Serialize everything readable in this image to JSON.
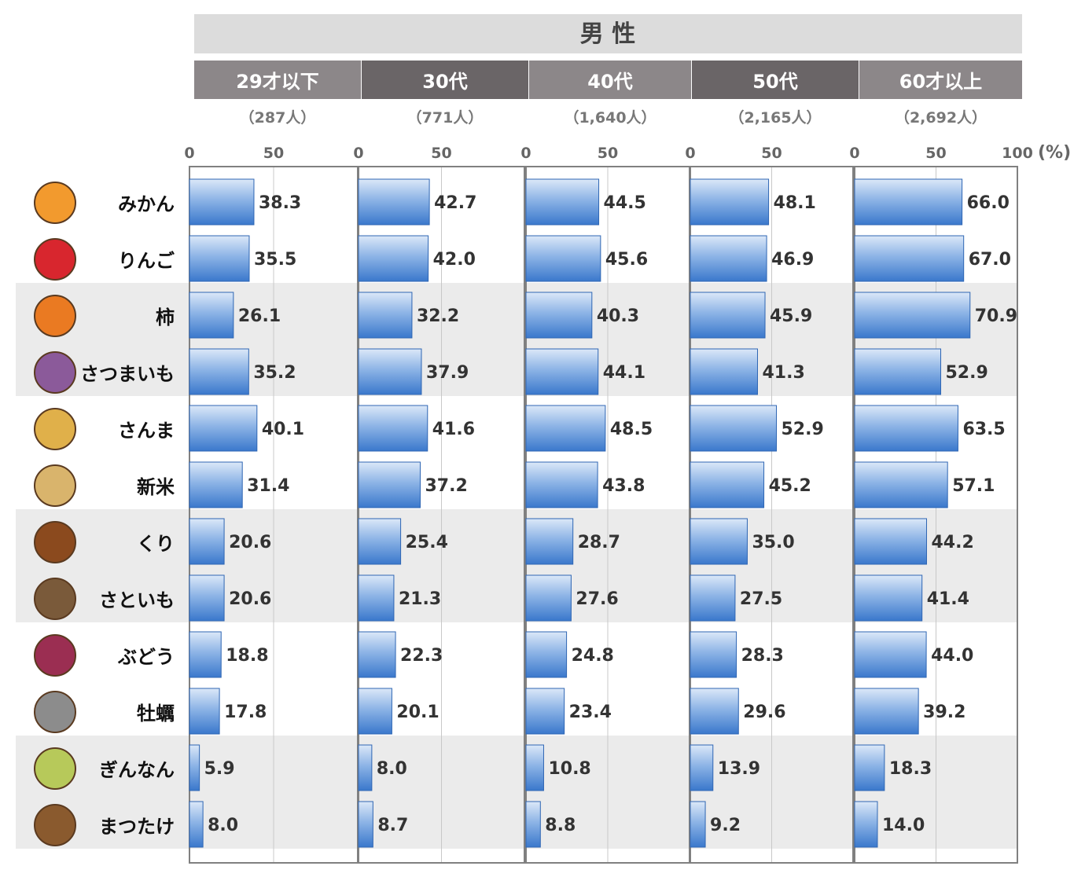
{
  "chart_data": {
    "type": "bar",
    "title": "男 性",
    "unit": "(%)",
    "categories": [
      "みかん",
      "りんご",
      "柿",
      "さつまいも",
      "さんま",
      "新米",
      "くり",
      "さといも",
      "ぶどう",
      "牡蠣",
      "ぎんなん",
      "まつたけ"
    ],
    "icons": [
      "orange-icon",
      "apple-icon",
      "persimmon-icon",
      "sweet-potato-icon",
      "saury-icon",
      "rice-measure-icon",
      "chestnut-icon",
      "taro-icon",
      "grape-icon",
      "oyster-icon",
      "ginkgo-icon",
      "matsutake-icon"
    ],
    "xlim": [
      0,
      100
    ],
    "ticks": [
      "0",
      "50",
      "100"
    ],
    "grid": true,
    "series": [
      {
        "name": "29才以下",
        "n": "（287人）",
        "values": [
          38.3,
          35.5,
          26.1,
          35.2,
          40.1,
          31.4,
          20.6,
          20.6,
          18.8,
          17.8,
          5.9,
          8.0
        ]
      },
      {
        "name": "30代",
        "n": "（771人）",
        "values": [
          42.7,
          42.0,
          32.2,
          37.9,
          41.6,
          37.2,
          25.4,
          21.3,
          22.3,
          20.1,
          8.0,
          8.7
        ]
      },
      {
        "name": "40代",
        "n": "（1,640人）",
        "values": [
          44.5,
          45.6,
          40.3,
          44.1,
          48.5,
          43.8,
          28.7,
          27.6,
          24.8,
          23.4,
          10.8,
          8.8
        ]
      },
      {
        "name": "50代",
        "n": "（2,165人）",
        "values": [
          48.1,
          46.9,
          45.9,
          41.3,
          52.9,
          45.2,
          35.0,
          27.5,
          28.3,
          29.6,
          13.9,
          9.2
        ]
      },
      {
        "name": "60才以上",
        "n": "（2,692人）",
        "values": [
          66.0,
          67.0,
          70.9,
          52.9,
          63.5,
          57.1,
          44.2,
          41.4,
          44.0,
          39.2,
          18.3,
          14.0
        ]
      }
    ],
    "colors": {
      "bar_top": "#dbe8f8",
      "bar_bottom": "#3a78cc",
      "bar_edge": "#2f66b3",
      "band": "#ebebeb",
      "header_light": "#8c8789",
      "header_dark": "#6a6567",
      "title_bg": "#dcdcdc",
      "frame": "#808080",
      "grid": "#c8c8c8"
    }
  }
}
